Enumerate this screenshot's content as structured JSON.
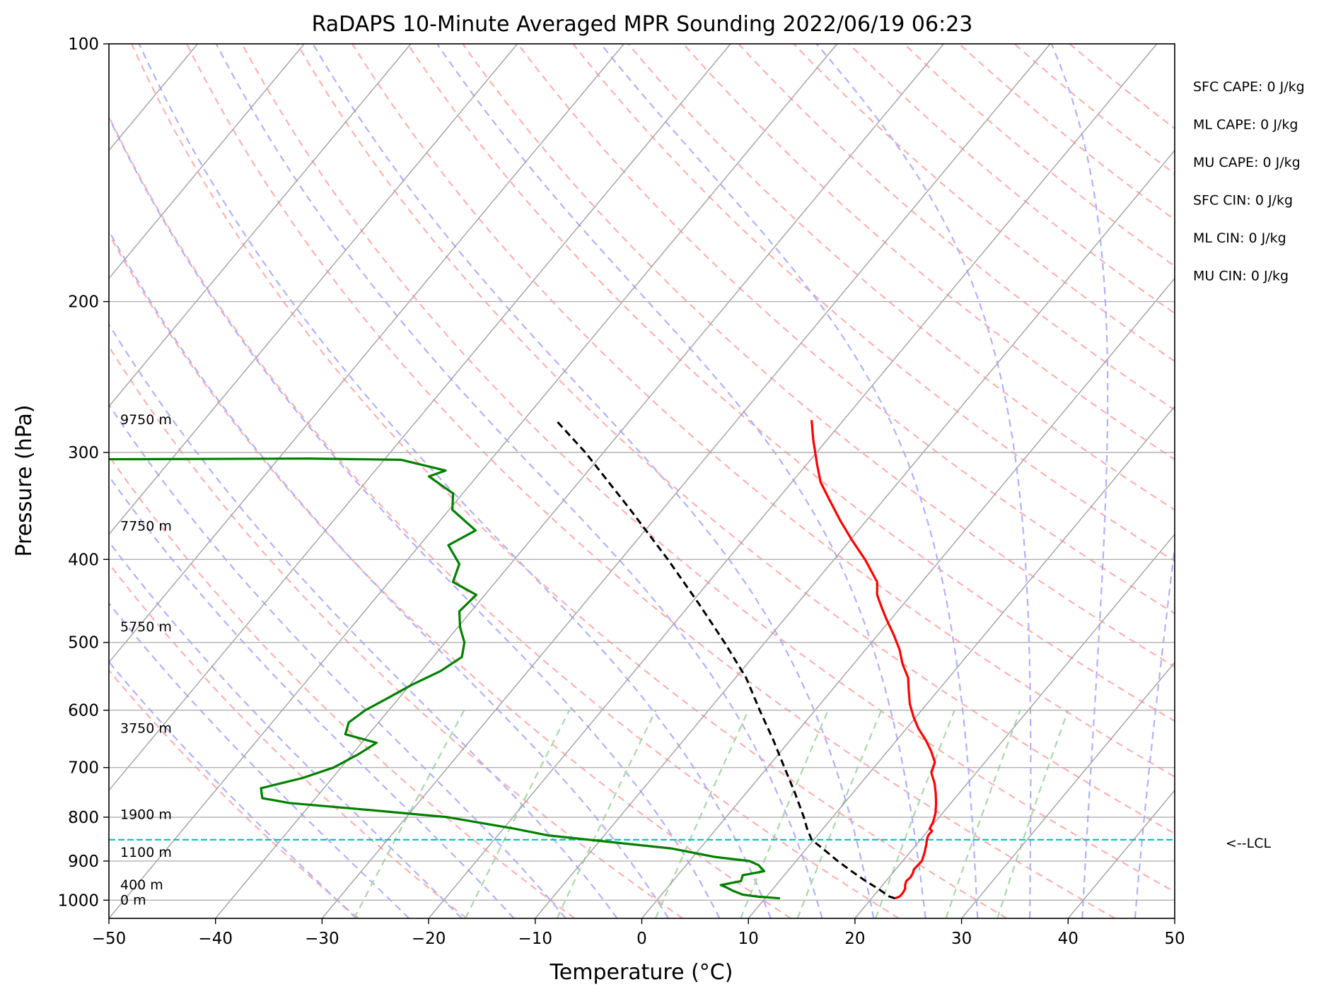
{
  "chart_data": {
    "type": "skew-t",
    "title": "RaDAPS 10-Minute Averaged MPR Sounding 2022/06/19 06:23",
    "xlabel": "Temperature (°C)",
    "ylabel": "Pressure (hPa)",
    "xlim": [
      -50,
      50
    ],
    "ylim": [
      1050,
      100
    ],
    "y_scale": "log",
    "x_ticks": [
      -50,
      -40,
      -30,
      -20,
      -10,
      0,
      10,
      20,
      30,
      40,
      50
    ],
    "x_tick_labels": [
      "−50",
      "−40",
      "−30",
      "−20",
      "−10",
      "0",
      "10",
      "20",
      "30",
      "40",
      "50"
    ],
    "y_ticks": [
      1000,
      900,
      800,
      700,
      600,
      500,
      400,
      300,
      200,
      100
    ],
    "y_tick_labels": [
      "1000",
      "900",
      "800",
      "700",
      "600",
      "500",
      "400",
      "300",
      "200",
      "100"
    ],
    "grid": true,
    "background_lines": [
      "isotherms",
      "dry adiabats",
      "moist adiabats",
      "mixing ratio lines"
    ],
    "colors": {
      "temperature": "#ff0000",
      "dewpoint": "#008000",
      "parcel": "#000000",
      "lcl": "#00bfbf",
      "isotherm": "#a0a0a0",
      "dry_adiabat": "#ffb0b0",
      "moist_adiabat": "#b0b0ff",
      "mixing_ratio": "#a8d8a8",
      "grid": "#b0b0b0"
    },
    "series": [
      {
        "kind": "temperature",
        "points": [
          [
            995,
            22.2
          ],
          [
            990,
            22.5
          ],
          [
            980,
            22.5
          ],
          [
            970,
            22.4
          ],
          [
            960,
            22.1
          ],
          [
            950,
            21.9
          ],
          [
            940,
            22.0
          ],
          [
            930,
            21.9
          ],
          [
            920,
            21.7
          ],
          [
            900,
            21.8
          ],
          [
            880,
            21.4
          ],
          [
            860,
            20.9
          ],
          [
            850,
            20.6
          ],
          [
            840,
            20.4
          ],
          [
            830,
            20.4
          ],
          [
            825,
            20.0
          ],
          [
            810,
            19.8
          ],
          [
            790,
            19.3
          ],
          [
            770,
            18.6
          ],
          [
            750,
            17.8
          ],
          [
            730,
            16.9
          ],
          [
            710,
            15.8
          ],
          [
            690,
            15.3
          ],
          [
            670,
            14.1
          ],
          [
            650,
            12.7
          ],
          [
            630,
            11.1
          ],
          [
            610,
            9.7
          ],
          [
            590,
            8.4
          ],
          [
            570,
            7.3
          ],
          [
            550,
            6.2
          ],
          [
            530,
            4.6
          ],
          [
            510,
            3.2
          ],
          [
            490,
            1.5
          ],
          [
            470,
            -0.4
          ],
          [
            455,
            -1.8
          ],
          [
            440,
            -3.2
          ],
          [
            425,
            -4.2
          ],
          [
            400,
            -7.1
          ],
          [
            380,
            -9.8
          ],
          [
            360,
            -12.5
          ],
          [
            340,
            -15.2
          ],
          [
            325,
            -17.3
          ],
          [
            310,
            -19.0
          ],
          [
            290,
            -21.3
          ],
          [
            275,
            -23.0
          ]
        ]
      },
      {
        "kind": "dewpoint",
        "points": [
          [
            995,
            11.4
          ],
          [
            990,
            9.0
          ],
          [
            985,
            7.6
          ],
          [
            975,
            6.4
          ],
          [
            965,
            5.4
          ],
          [
            960,
            4.8
          ],
          [
            950,
            6.4
          ],
          [
            935,
            6.1
          ],
          [
            925,
            7.8
          ],
          [
            910,
            6.8
          ],
          [
            900,
            5.6
          ],
          [
            890,
            2.0
          ],
          [
            870,
            -2.7
          ],
          [
            855,
            -9.0
          ],
          [
            840,
            -15.3
          ],
          [
            825,
            -19.0
          ],
          [
            800,
            -26.1
          ],
          [
            785,
            -33.8
          ],
          [
            770,
            -42.1
          ],
          [
            760,
            -45.0
          ],
          [
            740,
            -45.9
          ],
          [
            720,
            -42.8
          ],
          [
            700,
            -40.7
          ],
          [
            675,
            -39.4
          ],
          [
            655,
            -38.6
          ],
          [
            640,
            -42.2
          ],
          [
            620,
            -42.8
          ],
          [
            600,
            -42.2
          ],
          [
            580,
            -41.0
          ],
          [
            560,
            -39.8
          ],
          [
            540,
            -38.2
          ],
          [
            520,
            -37.3
          ],
          [
            500,
            -38.2
          ],
          [
            480,
            -39.8
          ],
          [
            460,
            -41.1
          ],
          [
            440,
            -40.8
          ],
          [
            425,
            -44.0
          ],
          [
            405,
            -44.8
          ],
          [
            385,
            -47.3
          ],
          [
            370,
            -45.9
          ],
          [
            350,
            -49.7
          ],
          [
            335,
            -50.9
          ],
          [
            320,
            -54.5
          ],
          [
            315,
            -53.4
          ],
          [
            306,
            -58.4
          ],
          [
            305,
            -67.1
          ],
          [
            305.5,
            -83.0
          ],
          [
            306,
            -150.0
          ]
        ]
      },
      {
        "kind": "parcel",
        "points": [
          [
            995,
            22.2
          ],
          [
            990,
            21.5
          ],
          [
            970,
            19.9
          ],
          [
            950,
            18.1
          ],
          [
            925,
            16.0
          ],
          [
            900,
            13.9
          ],
          [
            875,
            11.9
          ],
          [
            850,
            9.8
          ],
          [
            825,
            8.5
          ],
          [
            800,
            7.3
          ],
          [
            750,
            4.6
          ],
          [
            700,
            1.6
          ],
          [
            650,
            -1.6
          ],
          [
            600,
            -5.2
          ],
          [
            550,
            -9.0
          ],
          [
            500,
            -13.8
          ],
          [
            450,
            -19.3
          ],
          [
            400,
            -25.6
          ],
          [
            350,
            -33.0
          ],
          [
            300,
            -41.7
          ],
          [
            275,
            -47.0
          ]
        ]
      }
    ],
    "lcl_pressure": 850,
    "lcl_label": "<--LCL",
    "height_labels": [
      {
        "pressure": 1000,
        "label": "0 m"
      },
      {
        "pressure": 960,
        "label": "400 m"
      },
      {
        "pressure": 880,
        "label": "1100 m"
      },
      {
        "pressure": 795,
        "label": "1900 m"
      },
      {
        "pressure": 630,
        "label": "3750 m"
      },
      {
        "pressure": 480,
        "label": "5750 m"
      },
      {
        "pressure": 366,
        "label": "7750 m"
      },
      {
        "pressure": 275,
        "label": "9750 m"
      }
    ],
    "annotations": [
      "SFC CAPE: 0 J/kg",
      "ML CAPE: 0 J/kg",
      "MU CAPE: 0 J/kg",
      "SFC CIN: 0 J/kg",
      "ML CIN: 0 J/kg",
      "MU CIN: 0 J/kg"
    ]
  }
}
